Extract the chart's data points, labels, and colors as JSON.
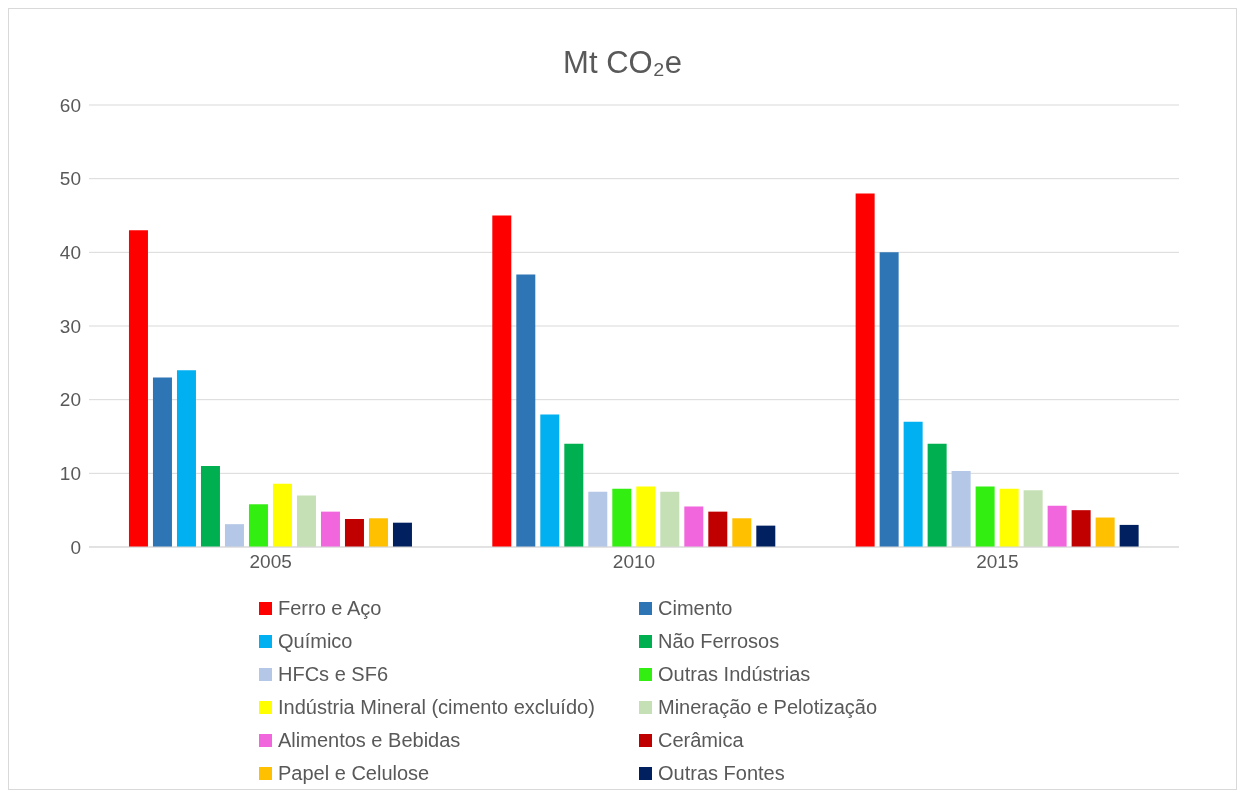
{
  "chart_data": {
    "type": "bar",
    "title": "Mt CO₂e",
    "categories": [
      "2005",
      "2010",
      "2015"
    ],
    "series": [
      {
        "name": "Ferro e Aço",
        "color": "#ff0000",
        "values": [
          43,
          45,
          48
        ]
      },
      {
        "name": "Cimento",
        "color": "#2e75b6",
        "values": [
          23,
          37,
          40
        ]
      },
      {
        "name": "Químico",
        "color": "#00b0f0",
        "values": [
          24,
          18,
          17
        ]
      },
      {
        "name": "Não Ferrosos",
        "color": "#00b050",
        "values": [
          11,
          14,
          14
        ]
      },
      {
        "name": "HFCs e SF6",
        "color": "#b4c7e7",
        "values": [
          3.1,
          7.5,
          10.3
        ]
      },
      {
        "name": "Outras Indústrias",
        "color": "#33ee11",
        "values": [
          5.8,
          7.9,
          8.2
        ]
      },
      {
        "name": "Indústria Mineral (cimento excluído)",
        "color": "#ffff00",
        "values": [
          8.6,
          8.2,
          7.9
        ]
      },
      {
        "name": "Mineração e Pelotização",
        "color": "#c5e0b4",
        "values": [
          7,
          7.5,
          7.7
        ]
      },
      {
        "name": "Alimentos e Bebidas",
        "color": "#f266dd",
        "values": [
          4.8,
          5.5,
          5.6
        ]
      },
      {
        "name": "Cerâmica",
        "color": "#c00000",
        "values": [
          3.8,
          4.8,
          5
        ]
      },
      {
        "name": "Papel e Celulose",
        "color": "#ffc000",
        "values": [
          3.9,
          3.9,
          4
        ]
      },
      {
        "name": "Outras Fontes",
        "color": "#002060",
        "values": [
          3.3,
          2.9,
          3
        ]
      }
    ],
    "ylim": [
      0,
      60
    ],
    "yticks": [
      0,
      10,
      20,
      30,
      40,
      50,
      60
    ],
    "grid": "y",
    "legend": "bottom"
  }
}
